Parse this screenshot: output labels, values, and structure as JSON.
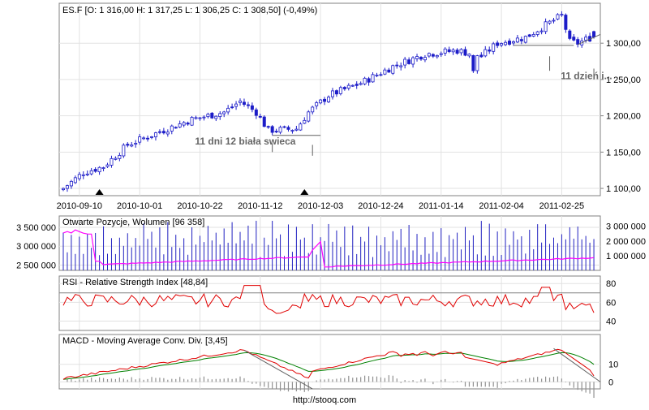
{
  "colors": {
    "candle": "#1c1cc8",
    "volume_bars": "#2020c0",
    "open_interest_line": "#ff00ff",
    "rsi_line": "#e00000",
    "macd_line": "#e00000",
    "signal_line": "#008000",
    "histogram": "#909090",
    "trendline": "#606060",
    "annotation_text": "#666666",
    "grid": "#e2e2e2"
  },
  "footer": "http://stooq.com",
  "chart_data": [
    {
      "type": "candlestick",
      "symbol_label": "ES.F [O: 1 316,00  H: 1 317,25  L: 1 306,25  C: 1 308,50] (-0,49%)",
      "x_tick_labels": [
        "2010-09-10",
        "2010-10-01",
        "2010-10-22",
        "2010-11-12",
        "2010-12-03",
        "2010-12-24",
        "2011-01-14",
        "2011-02-04",
        "2011-02-25"
      ],
      "y_tick_labels": [
        "1 100,00",
        "1 150,00",
        "1 200,00",
        "1 250,00",
        "1 300,00"
      ],
      "y_ticks": [
        1100,
        1150,
        1200,
        1250,
        1300
      ],
      "ylim": [
        1090,
        1355
      ],
      "grid": true,
      "annotations": [
        {
          "text": "11 dni 12 biała swieca",
          "session": 36,
          "price": 1165
        },
        {
          "text": "11 dzień i...",
          "session": 127,
          "price": 1255
        }
      ],
      "ohlc_summary": {
        "open": 1316.0,
        "high": 1317.25,
        "low": 1306.25,
        "close": 1308.5,
        "change_pct": -0.49
      }
    },
    {
      "type": "bar+line",
      "title": "Otwarte Pozycje, Wolumen [96 358]",
      "left_axis_labels": [
        "2 500 000",
        "3 000 000",
        "3 500 000"
      ],
      "left_axis_values": [
        2500000,
        3000000,
        3500000
      ],
      "left_ylim": [
        2360000,
        3800000
      ],
      "right_axis_labels": [
        "1 000 000",
        "2 000 000",
        "3 000 000"
      ],
      "right_axis_values": [
        1000000,
        2000000,
        3000000
      ],
      "right_ylim": [
        0,
        3700000
      ],
      "grid": true
    },
    {
      "type": "line",
      "title": "RSI - Relative Strength Index [48,84]",
      "y_tick_labels": [
        "40",
        "60",
        "80"
      ],
      "y_ticks": [
        40,
        60,
        80
      ],
      "ylim": [
        30,
        88
      ],
      "reference_lines": [
        30,
        70
      ],
      "last_value": 48.84,
      "grid": true
    },
    {
      "type": "line+bar",
      "title": "MACD - Moving Average Conv. Div. [3,45]",
      "y_tick_labels": [
        "0",
        "10"
      ],
      "y_ticks": [
        0,
        10
      ],
      "ylim": [
        -4,
        27
      ],
      "last_value": 3.45,
      "grid": true
    }
  ]
}
